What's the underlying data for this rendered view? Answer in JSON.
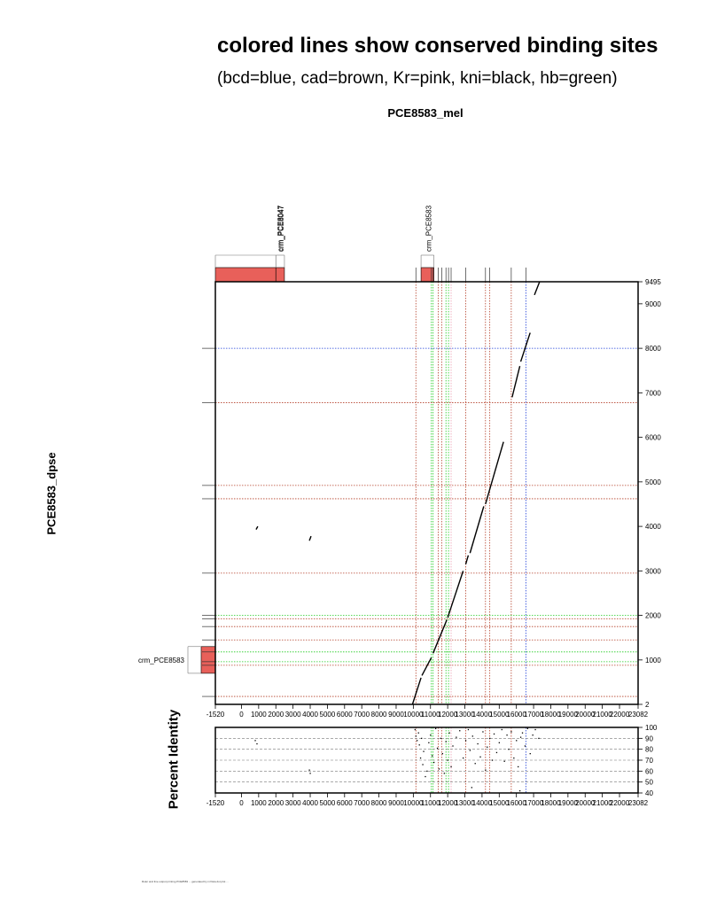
{
  "title": "colored lines show conserved binding sites",
  "subtitle": "(bcd=blue, cad=brown, Kr=pink, kni=black, hb=green)",
  "x_sequence": "PCE8583_mel",
  "y_sequence": "PCE8583_dpse",
  "identity_label": "Percent Identity",
  "footer_text": "Ruler and line output printing PCE8583 ... generated by mVista dot plot ...",
  "colors": {
    "bcd": "#1f3fd8",
    "cad": "#b5402a",
    "Kr": "#e8a0b0",
    "kni": "#000000",
    "hb": "#22cc22",
    "crm_fill": "#e8605a"
  },
  "chart_data": {
    "type": "scatter",
    "x_ticks": [
      "-1520",
      "0",
      "1000",
      "2000",
      "3000",
      "4000",
      "5000",
      "6000",
      "7000",
      "8000",
      "9000",
      "10000",
      "11000",
      "12000",
      "13000",
      "14000",
      "15000",
      "16000",
      "17000",
      "18000",
      "19000",
      "20000",
      "21000",
      "22000",
      "23082"
    ],
    "xlim": [
      -1520,
      23082
    ],
    "y_ticks": [
      "9495",
      "9000",
      "8000",
      "7000",
      "6000",
      "5000",
      "4000",
      "3000",
      "2000",
      "1000",
      "2"
    ],
    "y_tick_values": [
      9495,
      9000,
      8000,
      7000,
      6000,
      5000,
      4000,
      3000,
      2000,
      1000,
      2
    ],
    "ylim": [
      2,
      9495
    ],
    "identity_ticks": [
      100,
      90,
      80,
      70,
      60,
      50,
      40
    ],
    "x_crms": [
      {
        "name": "crm_PCE8047",
        "start": -1520,
        "end": 2000
      },
      {
        "name": "crm_PCE8047",
        "start": 2000,
        "end": 2500
      },
      {
        "name": "crm_PCE8583",
        "start": 10450,
        "end": 11200
      }
    ],
    "y_crms": [
      {
        "name": "crm_PCE8583",
        "start": 700,
        "end": 1300
      }
    ],
    "x_sites": [
      {
        "x": 10150,
        "tf": "cad"
      },
      {
        "x": 11050,
        "tf": "hb"
      },
      {
        "x": 11150,
        "tf": "hb"
      },
      {
        "x": 11450,
        "tf": "cad"
      },
      {
        "x": 11650,
        "tf": "cad"
      },
      {
        "x": 11900,
        "tf": "hb"
      },
      {
        "x": 12050,
        "tf": "hb"
      },
      {
        "x": 12200,
        "tf": "Kr"
      },
      {
        "x": 13050,
        "tf": "cad"
      },
      {
        "x": 14200,
        "tf": "cad"
      },
      {
        "x": 14450,
        "tf": "cad"
      },
      {
        "x": 15700,
        "tf": "cad"
      },
      {
        "x": 16550,
        "tf": "bcd"
      }
    ],
    "y_sites": [
      {
        "y": 8000,
        "tf": "bcd"
      },
      {
        "y": 6780,
        "tf": "cad"
      },
      {
        "y": 4920,
        "tf": "cad"
      },
      {
        "y": 4620,
        "tf": "cad"
      },
      {
        "y": 2950,
        "tf": "cad"
      },
      {
        "y": 2000,
        "tf": "hb"
      },
      {
        "y": 1920,
        "tf": "cad"
      },
      {
        "y": 1750,
        "tf": "cad"
      },
      {
        "y": 1450,
        "tf": "cad"
      },
      {
        "y": 1180,
        "tf": "hb"
      },
      {
        "y": 960,
        "tf": "hb"
      },
      {
        "y": 880,
        "tf": "cad"
      },
      {
        "y": 180,
        "tf": "cad"
      }
    ],
    "alignment_segments": [
      [
        [
          9950,
          2
        ],
        [
          10450,
          600
        ]
      ],
      [
        [
          10500,
          650
        ],
        [
          11050,
          1050
        ]
      ],
      [
        [
          11150,
          1150
        ],
        [
          11950,
          1900
        ]
      ],
      [
        [
          12000,
          1950
        ],
        [
          12900,
          3000
        ]
      ],
      [
        [
          13050,
          3150
        ],
        [
          13200,
          3350
        ]
      ],
      [
        [
          13300,
          3400
        ],
        [
          14100,
          4450
        ]
      ],
      [
        [
          14200,
          4500
        ],
        [
          15250,
          5900
        ]
      ],
      [
        [
          15750,
          6900
        ],
        [
          16200,
          7600
        ]
      ],
      [
        [
          16250,
          7700
        ],
        [
          16800,
          8350
        ]
      ],
      [
        [
          17050,
          9200
        ],
        [
          17350,
          9495
        ]
      ],
      [
        [
          850,
          3930
        ],
        [
          950,
          4000
        ]
      ],
      [
        [
          3950,
          3680
        ],
        [
          4050,
          3780
        ]
      ]
    ],
    "identity_points": [
      [
        10100,
        98
      ],
      [
        10150,
        92
      ],
      [
        10220,
        88
      ],
      [
        10300,
        95
      ],
      [
        10350,
        84
      ],
      [
        10420,
        72
      ],
      [
        10480,
        90
      ],
      [
        10550,
        66
      ],
      [
        10600,
        78
      ],
      [
        10700,
        55
      ],
      [
        10800,
        60
      ],
      [
        10900,
        86
      ],
      [
        11000,
        93
      ],
      [
        11100,
        74
      ],
      [
        11200,
        68
      ],
      [
        11300,
        99
      ],
      [
        11400,
        81
      ],
      [
        11500,
        62
      ],
      [
        11600,
        90
      ],
      [
        11700,
        76
      ],
      [
        11800,
        58
      ],
      [
        11900,
        87
      ],
      [
        12000,
        70
      ],
      [
        12100,
        95
      ],
      [
        12200,
        64
      ],
      [
        12300,
        83
      ],
      [
        12500,
        91
      ],
      [
        12700,
        97
      ],
      [
        12900,
        72
      ],
      [
        13050,
        88
      ],
      [
        13200,
        98
      ],
      [
        13300,
        79
      ],
      [
        13450,
        92
      ],
      [
        13600,
        67
      ],
      [
        13750,
        85
      ],
      [
        13900,
        73
      ],
      [
        14050,
        96
      ],
      [
        14200,
        61
      ],
      [
        14300,
        82
      ],
      [
        14450,
        90
      ],
      [
        14600,
        70
      ],
      [
        14700,
        94
      ],
      [
        14850,
        77
      ],
      [
        15000,
        86
      ],
      [
        15150,
        98
      ],
      [
        15300,
        69
      ],
      [
        15450,
        93
      ],
      [
        15550,
        80
      ],
      [
        15700,
        96
      ],
      [
        15850,
        72
      ],
      [
        16000,
        88
      ],
      [
        16100,
        64
      ],
      [
        16250,
        91
      ],
      [
        16350,
        95
      ],
      [
        16500,
        83
      ],
      [
        16650,
        99
      ],
      [
        16800,
        76
      ],
      [
        16950,
        93
      ],
      [
        17100,
        98
      ],
      [
        17300,
        90
      ],
      [
        800,
        88
      ],
      [
        900,
        85
      ],
      [
        3950,
        61
      ],
      [
        4000,
        58
      ],
      [
        13400,
        45
      ],
      [
        16200,
        42
      ]
    ]
  }
}
